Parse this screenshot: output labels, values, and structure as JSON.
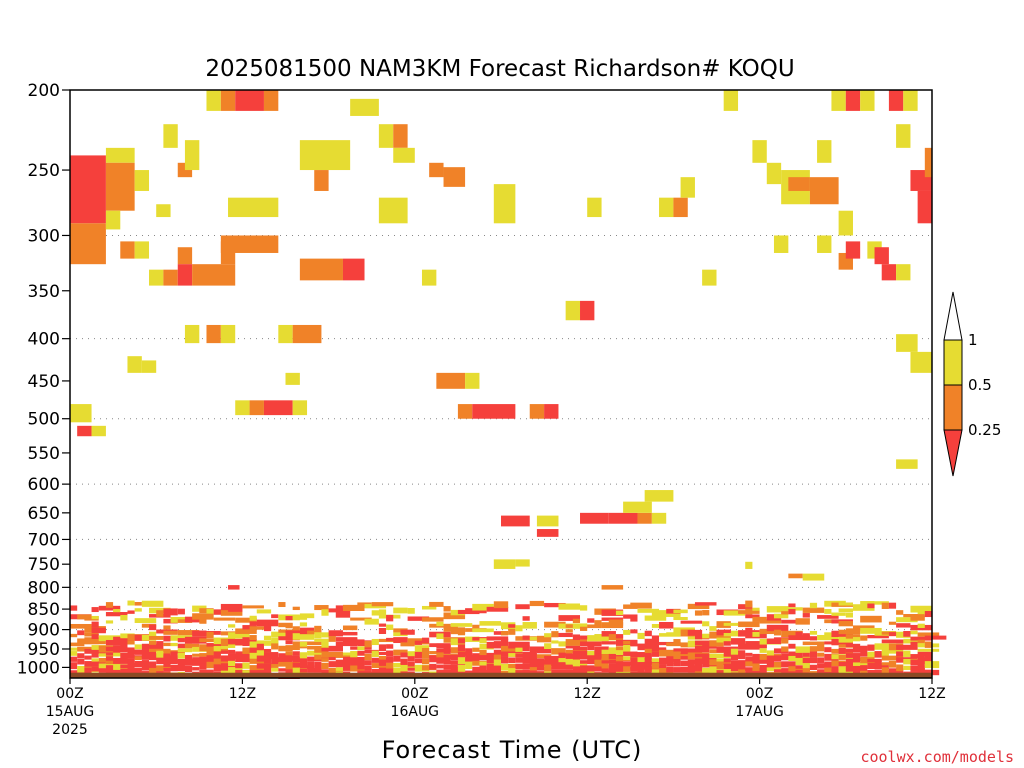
{
  "chart_data": {
    "type": "heatmap",
    "title": "2025081500 NAM3KM Forecast Richardson# KOQU",
    "xlabel": "Forecast Time (UTC)",
    "ylabel": "",
    "y_scale": "log-pressure (hPa), inverted",
    "ylim": [
      1030,
      200
    ],
    "xlim_hours": [
      0,
      60
    ],
    "y_ticks": [
      200,
      250,
      300,
      350,
      400,
      450,
      500,
      550,
      600,
      650,
      700,
      750,
      800,
      850,
      900,
      950,
      1000
    ],
    "y_dotted_gridlines": [
      300,
      400,
      500,
      600,
      700,
      800,
      900
    ],
    "x_ticks": [
      {
        "hour": 0,
        "lines": [
          "00Z",
          "15AUG",
          "2025"
        ]
      },
      {
        "hour": 12,
        "lines": [
          "12Z"
        ]
      },
      {
        "hour": 24,
        "lines": [
          "00Z",
          "16AUG"
        ]
      },
      {
        "hour": 36,
        "lines": [
          "12Z"
        ]
      },
      {
        "hour": 48,
        "lines": [
          "00Z",
          "17AUG"
        ]
      },
      {
        "hour": 60,
        "lines": [
          "12Z"
        ]
      }
    ],
    "legend": {
      "placement": "right",
      "labels": [
        "1",
        "0.5",
        "0.25"
      ],
      "bins": [
        {
          "range": "<0.25",
          "color": "#f5403c"
        },
        {
          "range": "0.25-0.5",
          "color": "#f08228"
        },
        {
          "range": "0.5-1",
          "color": "#e6dc32"
        },
        {
          "range": ">1",
          "color": "#ffffff"
        }
      ]
    },
    "cell_keys": [
      "t0_hr",
      "t1_hr",
      "p_top_hPa",
      "p_bottom_hPa",
      "category"
    ],
    "category_note": "0: Ri<0.25, 1: 0.25-0.5, 2: 0.5-1",
    "cells": [
      [
        0,
        2.5,
        240,
        290,
        0
      ],
      [
        0,
        2.5,
        290,
        325,
        1
      ],
      [
        2.5,
        4.5,
        235,
        245,
        2
      ],
      [
        2.5,
        4.5,
        245,
        280,
        1
      ],
      [
        2.5,
        3.5,
        280,
        295,
        2
      ],
      [
        3.5,
        4.5,
        305,
        320,
        1
      ],
      [
        4.5,
        5.5,
        305,
        320,
        2
      ],
      [
        4.5,
        5.5,
        250,
        265,
        2
      ],
      [
        5.5,
        6.5,
        330,
        345,
        2
      ],
      [
        6.5,
        7.5,
        330,
        345,
        1
      ],
      [
        6,
        7,
        275,
        285,
        2
      ],
      [
        6.5,
        7.5,
        220,
        235,
        2
      ],
      [
        7.5,
        8.5,
        245,
        255,
        1
      ],
      [
        7.5,
        8.5,
        310,
        325,
        1
      ],
      [
        7.5,
        8.5,
        325,
        345,
        0
      ],
      [
        8.5,
        11.5,
        325,
        345,
        1
      ],
      [
        10.5,
        11.5,
        305,
        325,
        1
      ],
      [
        9.5,
        10.5,
        200,
        212,
        2
      ],
      [
        10.5,
        11.5,
        200,
        212,
        1
      ],
      [
        11.5,
        13.5,
        200,
        212,
        0
      ],
      [
        13.5,
        14.5,
        200,
        212,
        1
      ],
      [
        10.5,
        14.5,
        300,
        315,
        1
      ],
      [
        11,
        14.5,
        270,
        285,
        2
      ],
      [
        8,
        9,
        230,
        250,
        2
      ],
      [
        8,
        9,
        385,
        405,
        2
      ],
      [
        9.5,
        10.5,
        385,
        405,
        1
      ],
      [
        10.5,
        11.5,
        385,
        405,
        2
      ],
      [
        5,
        6,
        425,
        440,
        2
      ],
      [
        11.5,
        12.5,
        475,
        495,
        2
      ],
      [
        12.5,
        13.5,
        475,
        495,
        1
      ],
      [
        13.5,
        15.5,
        475,
        495,
        0
      ],
      [
        15.5,
        16.5,
        475,
        495,
        2
      ],
      [
        15,
        16,
        440,
        455,
        2
      ],
      [
        14.5,
        15.5,
        385,
        405,
        2
      ],
      [
        15.5,
        17.5,
        385,
        405,
        1
      ],
      [
        16,
        19,
        320,
        340,
        1
      ],
      [
        19,
        20.5,
        320,
        340,
        0
      ],
      [
        16,
        19.5,
        230,
        250,
        2
      ],
      [
        17,
        18,
        250,
        265,
        1
      ],
      [
        0,
        1.5,
        480,
        505,
        2
      ],
      [
        0.5,
        1.5,
        510,
        525,
        0
      ],
      [
        1.5,
        2.5,
        510,
        525,
        2
      ],
      [
        4,
        5,
        420,
        440,
        2
      ],
      [
        19.5,
        21.5,
        205,
        215,
        2
      ],
      [
        21.5,
        22.5,
        220,
        235,
        2
      ],
      [
        22.5,
        23.5,
        220,
        235,
        1
      ],
      [
        22.5,
        24,
        235,
        245,
        2
      ],
      [
        25,
        26,
        245,
        255,
        1
      ],
      [
        26,
        27.5,
        248,
        262,
        1
      ],
      [
        21.5,
        23.5,
        270,
        290,
        2
      ],
      [
        24.5,
        25.5,
        330,
        345,
        2
      ],
      [
        25.5,
        27.5,
        440,
        460,
        1
      ],
      [
        27.5,
        28.5,
        440,
        460,
        2
      ],
      [
        27,
        28,
        480,
        500,
        1
      ],
      [
        28,
        31,
        480,
        500,
        0
      ],
      [
        29.5,
        31,
        260,
        290,
        2
      ],
      [
        32,
        33,
        480,
        500,
        1
      ],
      [
        33,
        34,
        480,
        500,
        0
      ],
      [
        34.5,
        35.5,
        360,
        380,
        2
      ],
      [
        35.5,
        36.5,
        360,
        380,
        0
      ],
      [
        36,
        37,
        270,
        285,
        2
      ],
      [
        35.5,
        37.5,
        650,
        670,
        0
      ],
      [
        37.5,
        39.5,
        650,
        670,
        0
      ],
      [
        39.5,
        40.5,
        650,
        670,
        1
      ],
      [
        38.5,
        40.5,
        630,
        650,
        2
      ],
      [
        40.5,
        41.5,
        650,
        670,
        2
      ],
      [
        40,
        42,
        610,
        630,
        2
      ],
      [
        30,
        32,
        655,
        675,
        0
      ],
      [
        32.5,
        34,
        655,
        675,
        2
      ],
      [
        32.5,
        34,
        680,
        695,
        0
      ],
      [
        29.5,
        31,
        740,
        760,
        2
      ],
      [
        31,
        32,
        740,
        755,
        2
      ],
      [
        41,
        42,
        270,
        285,
        2
      ],
      [
        42,
        43,
        270,
        285,
        1
      ],
      [
        42.5,
        43.5,
        255,
        270,
        2
      ],
      [
        44,
        45,
        330,
        345,
        2
      ],
      [
        45.5,
        46.5,
        200,
        212,
        2
      ],
      [
        47.5,
        48.5,
        230,
        245,
        2
      ],
      [
        48.5,
        49.5,
        245,
        260,
        2
      ],
      [
        49,
        50,
        300,
        315,
        2
      ],
      [
        49.5,
        51.5,
        250,
        275,
        2
      ],
      [
        50,
        51.5,
        255,
        265,
        1
      ],
      [
        51.5,
        53.5,
        255,
        275,
        1
      ],
      [
        53.5,
        54.5,
        280,
        300,
        2
      ],
      [
        52,
        53,
        230,
        245,
        2
      ],
      [
        53,
        54,
        200,
        212,
        2
      ],
      [
        54,
        55,
        200,
        212,
        0
      ],
      [
        55,
        56,
        200,
        212,
        2
      ],
      [
        52,
        53,
        300,
        315,
        2
      ],
      [
        53.5,
        54.5,
        315,
        330,
        1
      ],
      [
        54,
        55,
        305,
        320,
        0
      ],
      [
        55.5,
        56.5,
        305,
        320,
        2
      ],
      [
        56,
        57,
        310,
        325,
        0
      ],
      [
        57,
        58,
        200,
        212,
        0
      ],
      [
        57.5,
        58.5,
        220,
        235,
        2
      ],
      [
        58,
        59,
        200,
        212,
        2
      ],
      [
        56.5,
        57.5,
        325,
        340,
        0
      ],
      [
        57.5,
        58.5,
        325,
        340,
        2
      ],
      [
        58.5,
        60,
        250,
        265,
        0
      ],
      [
        59.5,
        60,
        235,
        255,
        1
      ],
      [
        59,
        60,
        265,
        290,
        0
      ],
      [
        57.5,
        59,
        395,
        415,
        2
      ],
      [
        58.5,
        60,
        415,
        440,
        2
      ],
      [
        57.5,
        59,
        560,
        575,
        2
      ],
      [
        47,
        47.5,
        745,
        760,
        2
      ],
      [
        50,
        51,
        770,
        780,
        1
      ],
      [
        51,
        52.5,
        770,
        785,
        2
      ],
      [
        11,
        11.8,
        795,
        805,
        0
      ],
      [
        37,
        38.5,
        795,
        805,
        1
      ]
    ],
    "boundary_layer_band": {
      "p_top_hPa": 830,
      "p_bottom_hPa": 1015,
      "note": "dense mixed band of all three categories between about 830 and 1015 hPa across the whole forecast"
    },
    "surface_band": {
      "p_top_hPa": 1015,
      "p_bottom_hPa": 1030,
      "color": "#8b4a24"
    }
  }
}
